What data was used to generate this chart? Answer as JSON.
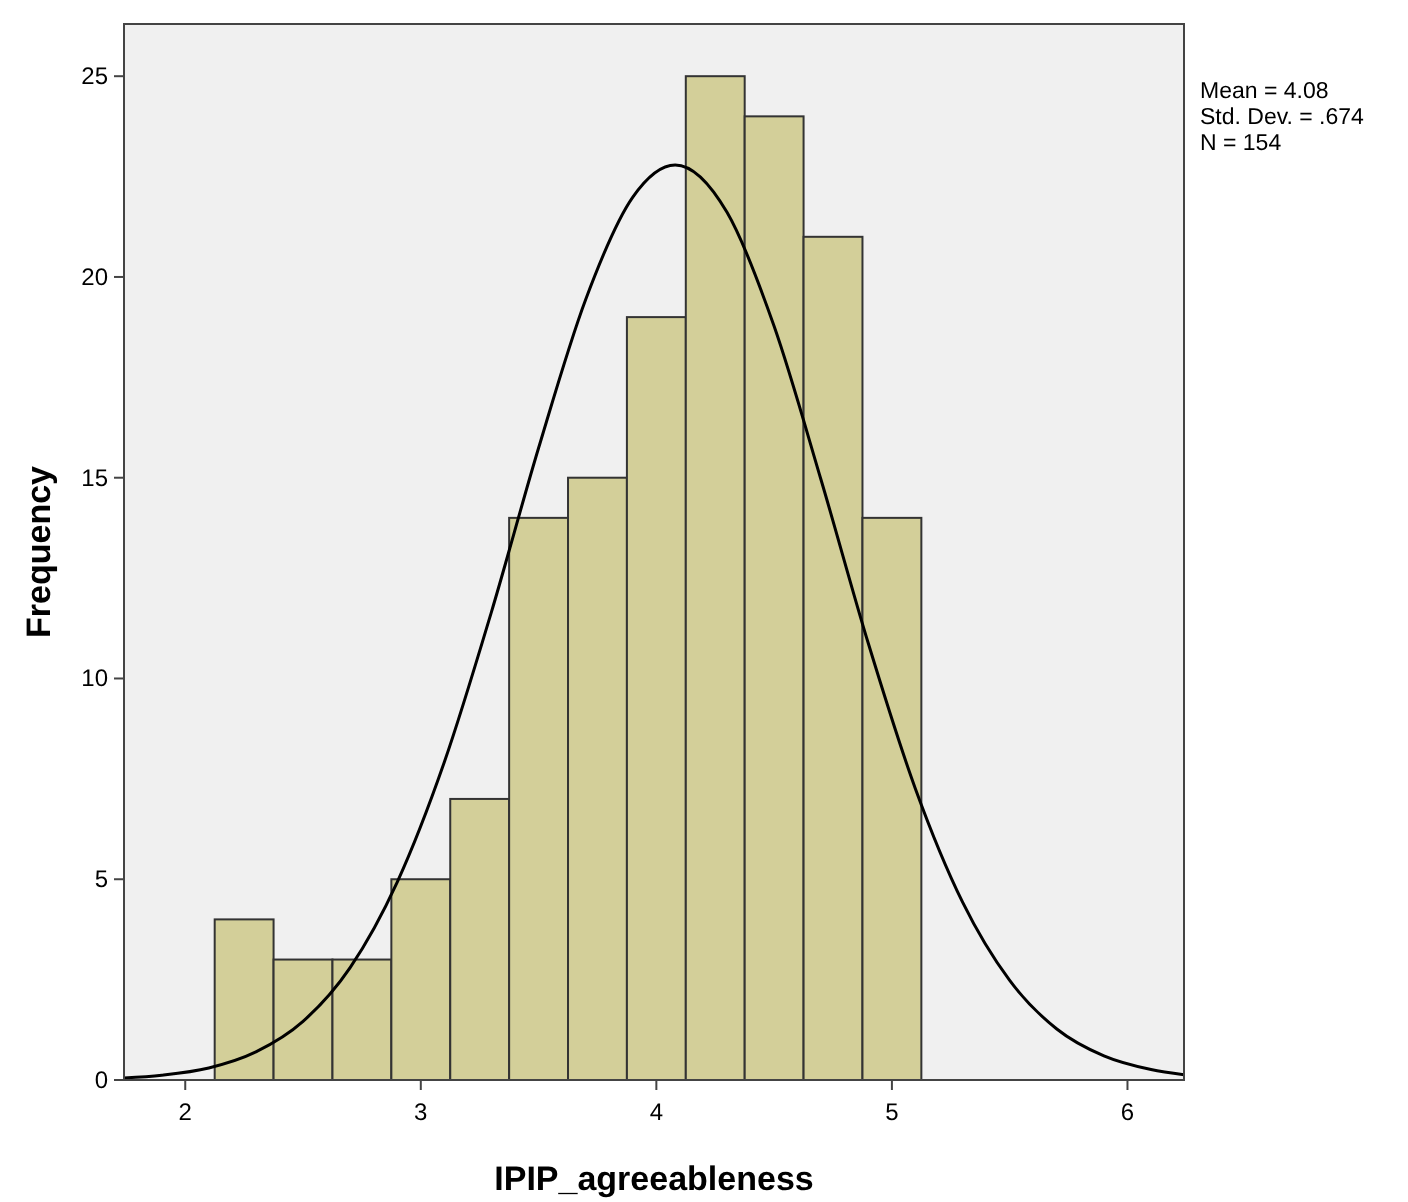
{
  "chart_data": {
    "type": "histogram",
    "xlabel": "IPIP_agreeableness",
    "ylabel": "Frequency",
    "bins": [
      2.125,
      2.375,
      2.625,
      2.875,
      3.125,
      3.375,
      3.625,
      3.875,
      4.125,
      4.375,
      4.625,
      4.875,
      5.125
    ],
    "values": [
      4,
      3,
      3,
      5,
      7,
      14,
      15,
      19,
      25,
      24,
      21,
      14
    ],
    "color": "#d3cf99",
    "series": [
      {
        "type": "line",
        "color": "#000000",
        "x": [
          1.74,
          1.9,
          2.1,
          2.3,
          2.5,
          2.7,
          2.9,
          3.1,
          3.3,
          3.5,
          3.7,
          3.9,
          4.08,
          4.3,
          4.5,
          4.7,
          4.9,
          5.1,
          5.3,
          5.5,
          5.7,
          5.9,
          6.1,
          6.24
        ],
        "values": [
          0.05,
          0.12,
          0.3,
          0.7,
          1.46,
          2.8,
          4.93,
          7.92,
          11.66,
          15.74,
          19.44,
          21.99,
          22.79,
          21.61,
          18.77,
          14.93,
          10.87,
          7.25,
          4.43,
          2.48,
          1.27,
          0.6,
          0.26,
          0.13
        ]
      }
    ],
    "xlim": [
      1.74,
      6.24
    ],
    "xticks": [
      2,
      3,
      4,
      5,
      6
    ],
    "ylim": [
      0,
      26.3
    ],
    "yticks": [
      0,
      5,
      10,
      15,
      20,
      25
    ],
    "annotations": [
      "Mean = 4.08",
      "Std. Dev. = .674",
      "N = 154"
    ]
  }
}
